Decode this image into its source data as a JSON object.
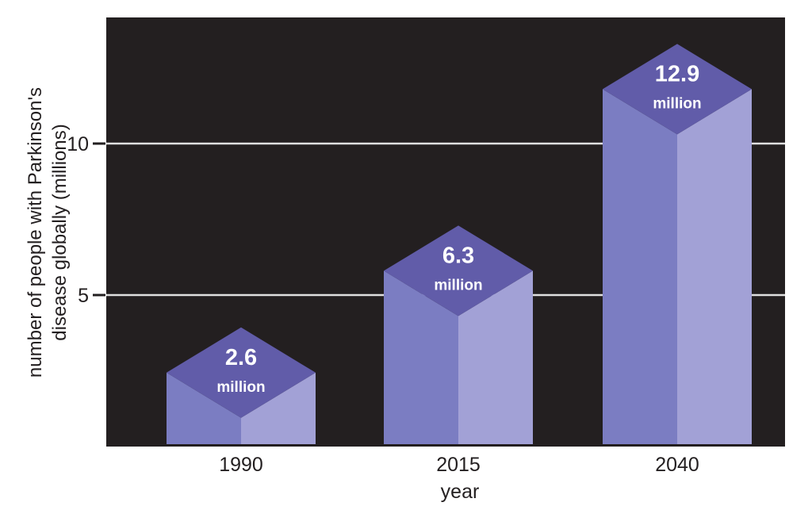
{
  "figure": {
    "page_background": "#ffffff"
  },
  "chart_data": {
    "type": "bar",
    "style": "3d-isometric-columns",
    "title": "",
    "categories": [
      "1990",
      "2015",
      "2040"
    ],
    "values": [
      2.6,
      6.3,
      12.9
    ],
    "bar_labels": [
      {
        "value": "2.6",
        "unit": "million"
      },
      {
        "value": "6.3",
        "unit": "million"
      },
      {
        "value": "12.9",
        "unit": "million"
      }
    ],
    "xlabel": "year",
    "ylabel_lines": [
      "number of people with Parkinson's",
      "disease globally (millions)"
    ],
    "y_ticks": [
      5,
      10
    ],
    "ylim": [
      0,
      14.2
    ],
    "grid": "horizontal",
    "legend": "none",
    "colors": {
      "plot_background": "#231f20",
      "gridline": "#e0e0e0",
      "axis_text": "#231f20",
      "tick_mark": "#231f20",
      "bar_left_face": "#7b7dc2",
      "bar_right_face": "#a2a1d6",
      "bar_top_face": "#615ca9",
      "bar_label_text": "#ffffff",
      "page_background": "#ffffff"
    }
  }
}
